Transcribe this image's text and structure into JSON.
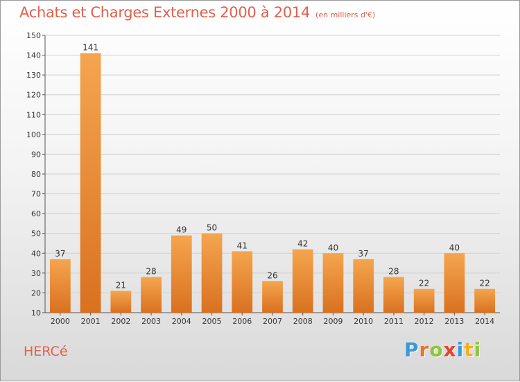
{
  "header": {
    "title": "Achats et Charges Externes 2000 à 2014",
    "unit": "(en milliers d'€)"
  },
  "footer": {
    "place": "HERCé",
    "logo_letters": [
      "P",
      "r",
      "o",
      "x",
      "i",
      "t",
      "i"
    ],
    "logo_colors": [
      "#3a9ad9",
      "#e8742c",
      "#8cc63f",
      "#e8432c",
      "#3a9ad9",
      "#f2b01e",
      "#8cc63f"
    ]
  },
  "colors": {
    "bar_light": "#f5a54f",
    "bar_dark": "#d9711f",
    "axis": "#555555",
    "grid": "#cfcfcf",
    "text": "#333333",
    "title": "#e0604a"
  },
  "chart_data": {
    "type": "bar",
    "categories": [
      "2000",
      "2001",
      "2002",
      "2003",
      "2004",
      "2005",
      "2006",
      "2007",
      "2008",
      "2009",
      "2010",
      "2011",
      "2012",
      "2013",
      "2014"
    ],
    "values": [
      37,
      141,
      21,
      28,
      49,
      50,
      41,
      26,
      42,
      40,
      37,
      28,
      22,
      40,
      22
    ],
    "title": "Achats et Charges Externes 2000 à 2014",
    "ylim": [
      10,
      150
    ],
    "yticks": [
      10,
      20,
      30,
      40,
      50,
      60,
      70,
      80,
      90,
      100,
      110,
      120,
      130,
      140,
      150
    ],
    "grid": true,
    "data_labels": true
  }
}
